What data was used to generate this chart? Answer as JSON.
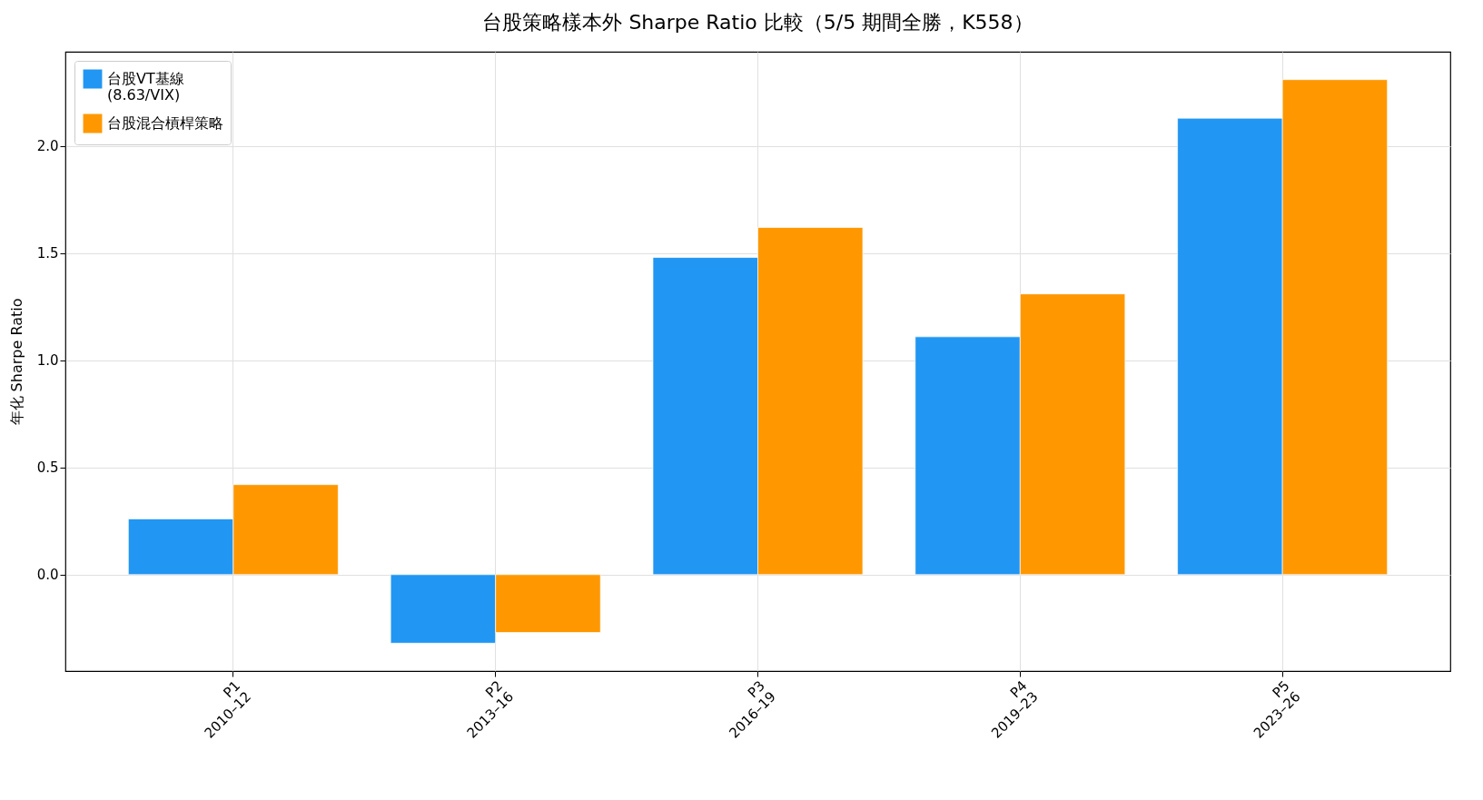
{
  "chart_data": {
    "type": "bar",
    "title": "台股策略樣本外 Sharpe Ratio 比較（5/5 期間全勝，K558）",
    "ylabel": "年化 Sharpe Ratio",
    "categories": [
      "P1\n2010–12",
      "P2\n2013–16",
      "P3\n2016–19",
      "P4\n2019–23",
      "P5\n2023–26"
    ],
    "series": [
      {
        "name": "台股VT基線\n(8.63/VIX)",
        "color": "#2196f3",
        "values": [
          0.26,
          -0.32,
          1.48,
          1.11,
          2.13
        ]
      },
      {
        "name": "台股混合槓桿策略",
        "color": "#ff9800",
        "values": [
          0.42,
          -0.27,
          1.62,
          1.31,
          2.31
        ]
      }
    ],
    "ylim": [
      -0.45,
      2.44
    ],
    "yticks": [
      {
        "value": 0,
        "label": "0.0"
      },
      0.5,
      {
        "value": 1,
        "label": "1.0"
      },
      1.5,
      {
        "value": 2,
        "label": "2.0"
      }
    ],
    "grid": true,
    "legend": "top left"
  }
}
